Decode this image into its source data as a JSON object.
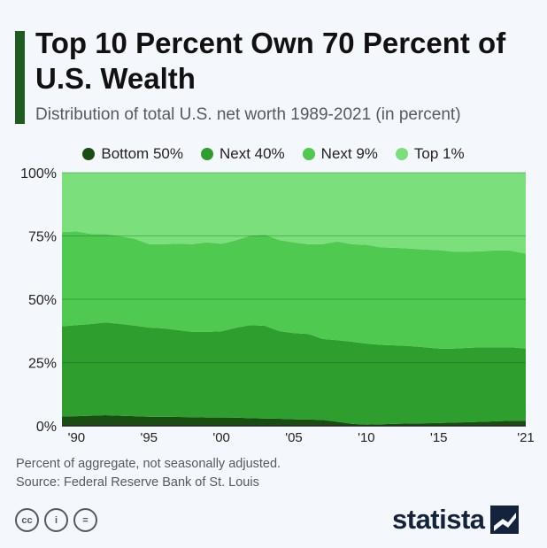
{
  "header": {
    "title": "Top 10 Percent Own 70 Percent of U.S. Wealth",
    "subtitle": "Distribution of total U.S. net worth 1989-2021 (in percent)"
  },
  "legend": [
    {
      "name": "Bottom 50%",
      "color": "#1a4d12"
    },
    {
      "name": "Next 40%",
      "color": "#2e9e2e"
    },
    {
      "name": "Next 9%",
      "color": "#4fc94f"
    },
    {
      "name": "Top 1%",
      "color": "#7be07b"
    }
  ],
  "chart_data": {
    "type": "area",
    "stacked": true,
    "x": [
      1989,
      1990,
      1991,
      1992,
      1993,
      1994,
      1995,
      1996,
      1997,
      1998,
      1999,
      2000,
      2001,
      2002,
      2003,
      2004,
      2005,
      2006,
      2007,
      2008,
      2009,
      2010,
      2011,
      2012,
      2013,
      2014,
      2015,
      2016,
      2017,
      2018,
      2019,
      2020,
      2021
    ],
    "series": [
      {
        "name": "Bottom 50%",
        "color": "#1a4d12",
        "values": [
          3.7,
          3.8,
          4.0,
          4.2,
          4.0,
          3.8,
          3.6,
          3.6,
          3.5,
          3.4,
          3.3,
          3.3,
          3.2,
          3.0,
          2.9,
          2.8,
          2.6,
          2.5,
          2.3,
          1.6,
          0.8,
          0.5,
          0.6,
          0.8,
          0.9,
          1.0,
          1.1,
          1.3,
          1.4,
          1.6,
          1.8,
          2.0,
          2.0
        ]
      },
      {
        "name": "Next 40%",
        "color": "#2e9e2e",
        "values": [
          35.6,
          36.0,
          36.2,
          36.6,
          36.3,
          35.8,
          35.2,
          34.9,
          34.3,
          33.7,
          33.8,
          34.0,
          35.5,
          36.8,
          36.6,
          34.6,
          34.0,
          33.8,
          32.0,
          32.2,
          32.4,
          32.0,
          31.4,
          31.0,
          30.6,
          30.0,
          29.4,
          29.2,
          29.4,
          29.4,
          29.2,
          29.0,
          28.5
        ]
      },
      {
        "name": "Next 9%",
        "color": "#4fc94f",
        "values": [
          37.2,
          37.0,
          35.6,
          35.0,
          34.6,
          34.3,
          33.0,
          33.3,
          34.1,
          34.7,
          35.4,
          34.6,
          34.6,
          35.3,
          36.0,
          36.0,
          35.8,
          35.4,
          37.5,
          39.0,
          38.5,
          39.0,
          38.5,
          38.5,
          38.5,
          38.6,
          38.9,
          38.3,
          38.0,
          38.0,
          38.3,
          38.2,
          37.5
        ]
      },
      {
        "name": "Top 1%",
        "color": "#7be07b",
        "values": [
          23.5,
          23.2,
          24.2,
          24.2,
          25.1,
          26.1,
          28.2,
          28.2,
          28.1,
          28.2,
          27.5,
          28.1,
          26.7,
          24.9,
          24.5,
          26.6,
          27.6,
          28.3,
          28.2,
          27.2,
          28.3,
          28.5,
          29.5,
          29.7,
          30.0,
          30.4,
          30.6,
          31.2,
          31.2,
          31.0,
          30.7,
          30.8,
          32.0
        ]
      }
    ],
    "x_ticks": [
      {
        "value": 1990,
        "label": "'90"
      },
      {
        "value": 1995,
        "label": "'95"
      },
      {
        "value": 2000,
        "label": "'00"
      },
      {
        "value": 2005,
        "label": "'05"
      },
      {
        "value": 2010,
        "label": "'10"
      },
      {
        "value": 2015,
        "label": "'15"
      },
      {
        "value": 2021,
        "label": "'21"
      }
    ],
    "y_ticks": [
      {
        "value": 0,
        "label": "0%"
      },
      {
        "value": 25,
        "label": "25%"
      },
      {
        "value": 50,
        "label": "50%"
      },
      {
        "value": 75,
        "label": "75%"
      },
      {
        "value": 100,
        "label": "100%"
      }
    ],
    "ylim": [
      0,
      100
    ],
    "xlim": [
      1989,
      2021
    ],
    "grid": true,
    "legend_position": "top"
  },
  "footer": {
    "note": "Percent of aggregate, not seasonally adjusted.",
    "source": "Source: Federal Reserve Bank of St. Louis",
    "brand": "statista",
    "license_icons": [
      "cc-icon",
      "by-icon",
      "nd-icon"
    ],
    "license_labels": [
      "cc",
      "i",
      "="
    ]
  }
}
